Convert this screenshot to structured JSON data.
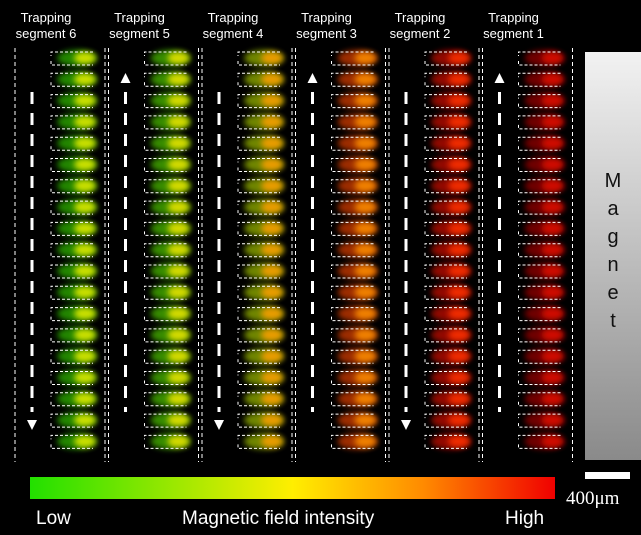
{
  "segments": [
    "Trapping segment 6",
    "Trapping segment 5",
    "Trapping segment 4",
    "Trapping segment 3",
    "Trapping segment 2",
    "Trapping segment 1"
  ],
  "magnet": "Magnet",
  "scale_bar": "400μm",
  "colorbar": {
    "low": "Low",
    "title": "Magnetic field intensity",
    "high": "High"
  }
}
